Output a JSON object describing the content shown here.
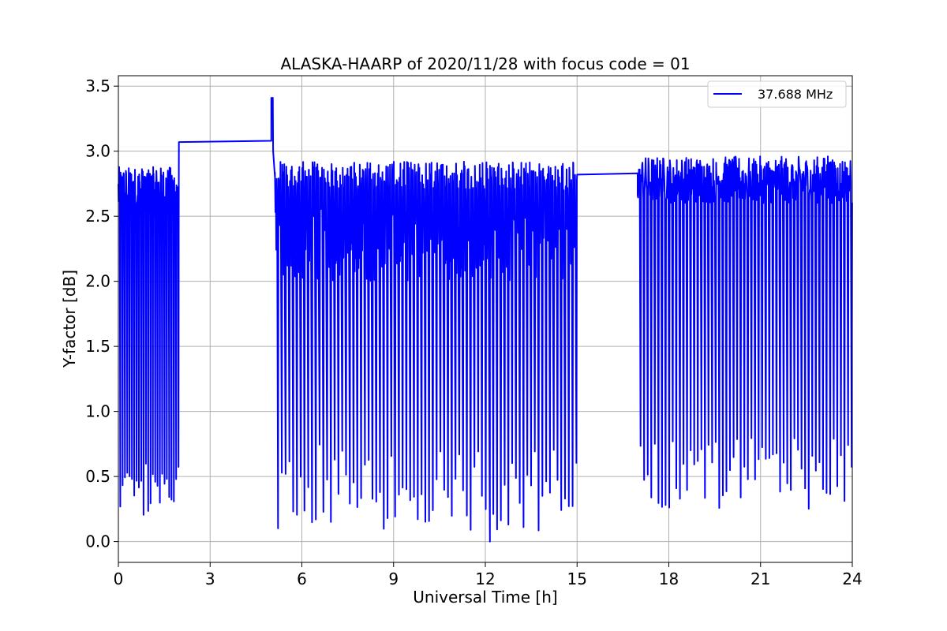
{
  "chart_data": {
    "type": "line",
    "title": "ALASKA-HAARP of 2020/11/28 with focus code = 01",
    "xlabel": "Universal Time [h]",
    "ylabel": "Y-factor [dB]",
    "xlim": [
      0,
      24
    ],
    "ylim": [
      -0.16,
      3.58
    ],
    "xticks": [
      "0",
      "3",
      "6",
      "9",
      "12",
      "15",
      "18",
      "21",
      "24"
    ],
    "xtick_values": [
      0,
      3,
      6,
      9,
      12,
      15,
      18,
      21,
      24
    ],
    "yticks": [
      "0.0",
      "0.5",
      "1.0",
      "1.5",
      "2.0",
      "2.5",
      "3.0",
      "3.5"
    ],
    "ytick_values": [
      0.0,
      0.5,
      1.0,
      1.5,
      2.0,
      2.5,
      3.0,
      3.5
    ],
    "grid": true,
    "legend_position": "top-right",
    "series": [
      {
        "name": "37.688 MHz",
        "color": "#0000ff",
        "segments": [
          {
            "x_start": 0.0,
            "x_end": 1.98,
            "y_low_range": [
              0.2,
              0.6
            ],
            "y_high_range": [
              2.5,
              2.88
            ],
            "cycles": 26
          },
          {
            "x_start": 1.98,
            "x_end": 5.0,
            "y": [
              3.07,
              3.08
            ]
          },
          {
            "x_start": 5.0,
            "x_end": 5.12,
            "y_peak": 3.41
          },
          {
            "x_start": 5.12,
            "x_end": 15.0,
            "y_low_range": [
              0.08,
              0.75
            ],
            "y_high_range": [
              2.7,
              2.92
            ],
            "y_mid_range": [
              2.0,
              2.6
            ],
            "cycles": 80
          },
          {
            "x_start": 15.0,
            "x_end": 16.98,
            "y": [
              2.82,
              2.83
            ]
          },
          {
            "x_start": 16.98,
            "x_end": 24.0,
            "y_low_range": [
              0.25,
              0.8
            ],
            "y_high_range": [
              2.6,
              2.96
            ],
            "cycles": 60
          }
        ],
        "notable_points": [
          {
            "x": 5.05,
            "y": 3.41
          },
          {
            "x": 12.15,
            "y": 0.0
          },
          {
            "x": 23.2,
            "y": 2.96
          },
          {
            "x": 11.3,
            "y": 2.92
          }
        ]
      }
    ]
  }
}
